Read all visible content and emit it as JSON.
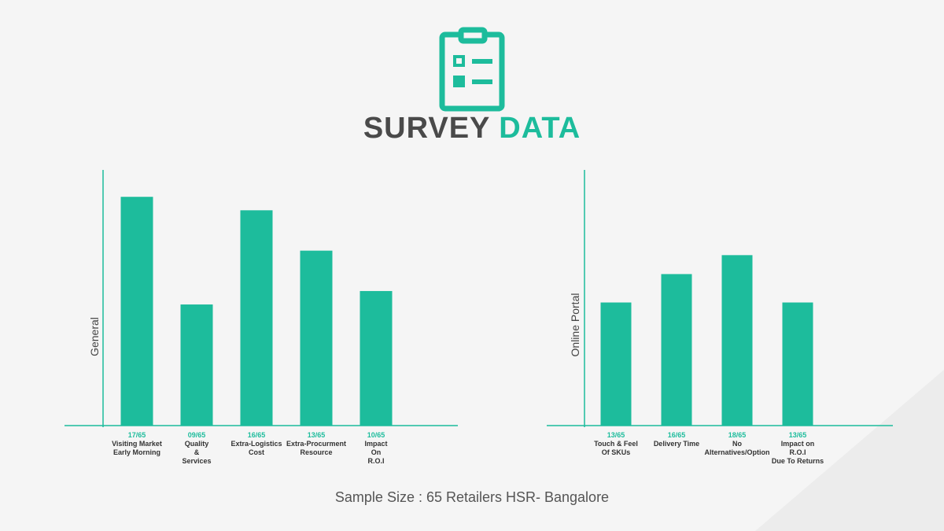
{
  "title_parts": [
    "SURVEY",
    "DATA"
  ],
  "footnote": "Sample Size : 65 Retailers HSR- Bangalore",
  "chart_data": [
    {
      "type": "bar",
      "y_label": "General",
      "categories": [
        "Visiting Market\nEarly Morning",
        "Quality\n&\nServices",
        "Extra-Logistics\nCost",
        "Extra-Procurment\nResource",
        "Impact\nOn\nR.O.I"
      ],
      "values": [
        17,
        9,
        16,
        13,
        10
      ],
      "value_labels": [
        "17/65",
        "09/65",
        "16/65",
        "13/65",
        "10/65"
      ],
      "color": "#1dbc9c",
      "ylim": [
        0,
        19
      ]
    },
    {
      "type": "bar",
      "y_label": "Online Portal",
      "categories": [
        "Touch & Feel\nOf SKUs",
        "Delivery Time",
        "No\nAlternatives/Option",
        "Impact on\nR.O.I\nDue To Returns"
      ],
      "values": [
        13,
        16,
        18,
        13
      ],
      "value_labels": [
        "13/65",
        "16/65",
        "18/65",
        "13/65"
      ],
      "color": "#1dbc9c",
      "ylim": [
        0,
        27
      ]
    }
  ]
}
